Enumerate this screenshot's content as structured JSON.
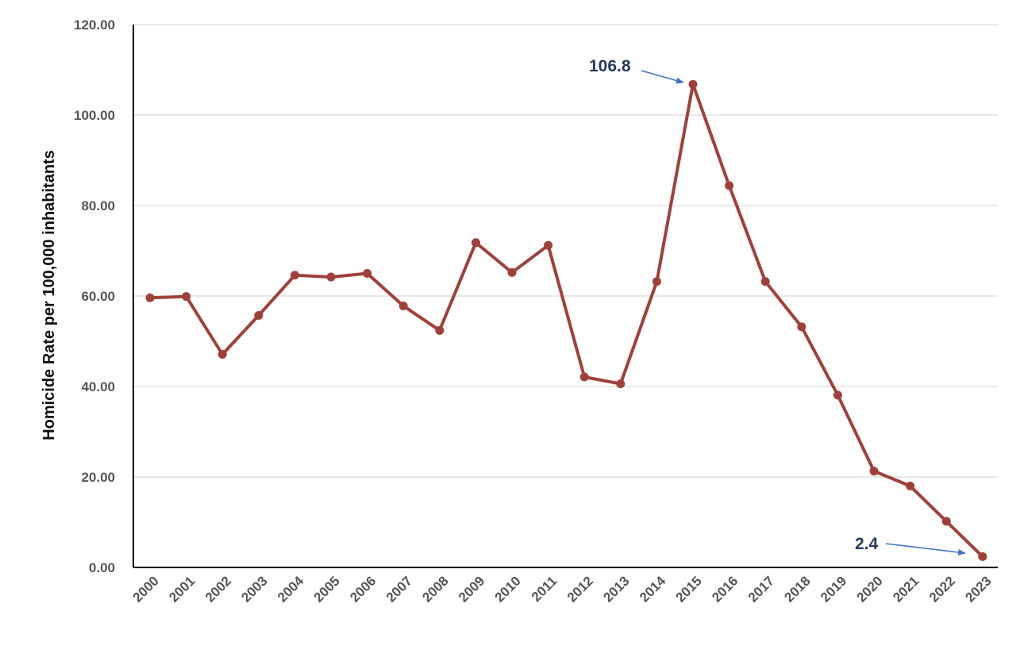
{
  "chart_data": {
    "type": "line",
    "title": "",
    "xlabel": "",
    "ylabel": "Homicide Rate per 100,000 inhabitants",
    "ylim": [
      0,
      120
    ],
    "yticks": [
      "0.00",
      "20.00",
      "40.00",
      "60.00",
      "80.00",
      "100.00",
      "120.00"
    ],
    "grid": true,
    "legend": "none",
    "x": [
      "2000",
      "2001",
      "2002",
      "2003",
      "2004",
      "2005",
      "2006",
      "2007",
      "2008",
      "2009",
      "2010",
      "2011",
      "2012",
      "2013",
      "2014",
      "2015",
      "2016",
      "2017",
      "2018",
      "2019",
      "2020",
      "2021",
      "2022",
      "2023"
    ],
    "series": [
      {
        "color": "#a0403a",
        "values": [
          59.6,
          59.9,
          47.1,
          55.7,
          64.6,
          64.2,
          65.0,
          57.8,
          52.4,
          71.8,
          65.2,
          71.2,
          42.1,
          40.6,
          63.2,
          106.8,
          84.4,
          63.2,
          53.2,
          38.1,
          21.3,
          18.0,
          10.2,
          2.4
        ]
      }
    ],
    "annotations": [
      {
        "text": "106.8",
        "target_x": "2015",
        "target_y": 106.8
      },
      {
        "text": "2.4",
        "target_x": "2023",
        "target_y": 2.4
      }
    ],
    "colors": {
      "line": "#a0403a",
      "grid": "#d9d9d9",
      "axis": "#000000",
      "arrow": "#4472c4",
      "annotation": "#263a63"
    }
  }
}
